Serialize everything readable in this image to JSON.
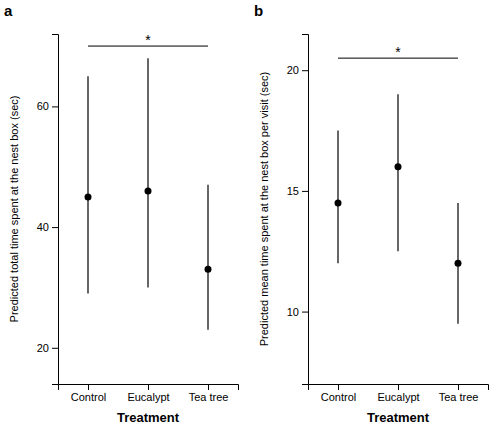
{
  "chart_data": [
    {
      "type": "dot",
      "title": "a",
      "categories": [
        "Control",
        "Eucalypt",
        "Tea tree"
      ],
      "values": [
        45.0,
        46.0,
        33.0
      ],
      "ci_low": [
        29.0,
        30.0,
        23.0
      ],
      "ci_high": [
        65.0,
        68.0,
        47.0
      ],
      "color": "#000000",
      "x_label": "Treatment",
      "y_label": "Predicted total time spent at the nest box (sec)",
      "ylim": [
        14,
        72
      ],
      "yticks": [
        20,
        40,
        60
      ],
      "grid": false,
      "annotations": [
        {
          "text": "*",
          "y": 70.0,
          "x": [
            "Control",
            "Tea tree"
          ]
        }
      ]
    },
    {
      "type": "dot",
      "title": "b",
      "categories": [
        "Control",
        "Eucalypt",
        "Tea tree"
      ],
      "values": [
        14.5,
        16.0,
        12.0
      ],
      "ci_low": [
        12.0,
        12.5,
        9.5
      ],
      "ci_high": [
        17.5,
        19.0,
        14.5
      ],
      "color": "#000000",
      "x_label": "Treatment",
      "y_label": "Predicted mean time spent at the nest box per visit (sec)",
      "ylim": [
        7.0,
        21.5
      ],
      "yticks": [
        10,
        15,
        20
      ],
      "grid": false,
      "annotations": [
        {
          "text": "*",
          "y": 20.5,
          "x": [
            "Control",
            "Tea tree"
          ]
        }
      ]
    }
  ]
}
